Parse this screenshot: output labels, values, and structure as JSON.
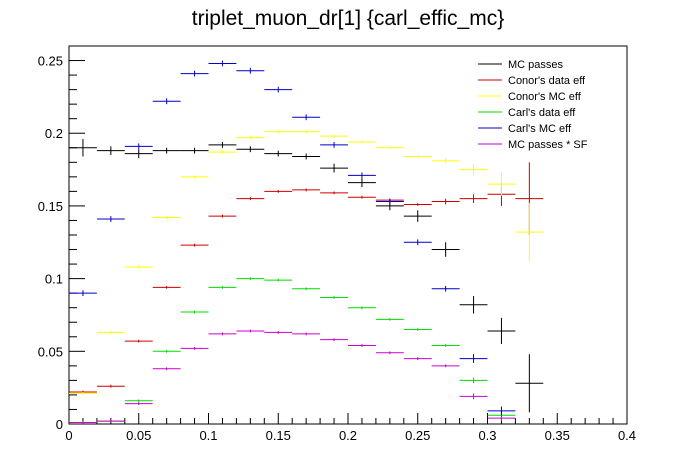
{
  "chart_data": {
    "type": "scatter",
    "title": "triplet_muon_dr[1]  {carl_effic_mc}",
    "xlabel": "",
    "ylabel": "",
    "xlim": [
      0,
      0.4
    ],
    "ylim": [
      0,
      0.26
    ],
    "x_ticks": [
      "0",
      "0.05",
      "0.1",
      "0.15",
      "0.2",
      "0.25",
      "0.3",
      "0.35",
      "0.4"
    ],
    "y_ticks": [
      "0",
      "0.05",
      "0.1",
      "0.15",
      "0.2",
      "0.25"
    ],
    "bin_width": 0.02,
    "legend_position": "top-right",
    "series": [
      {
        "name": "MC passes",
        "color": "#000000",
        "x": [
          0.01,
          0.03,
          0.05,
          0.07,
          0.09,
          0.11,
          0.13,
          0.15,
          0.17,
          0.19,
          0.21,
          0.23,
          0.25,
          0.27,
          0.29,
          0.31,
          0.33
        ],
        "y": [
          0.19,
          0.188,
          0.186,
          0.188,
          0.188,
          0.192,
          0.189,
          0.186,
          0.184,
          0.176,
          0.166,
          0.15,
          0.143,
          0.12,
          0.082,
          0.064,
          0.028
        ],
        "err": [
          0.006,
          0.003,
          0.003,
          0.002,
          0.002,
          0.002,
          0.002,
          0.002,
          0.002,
          0.003,
          0.003,
          0.003,
          0.004,
          0.005,
          0.006,
          0.009,
          0.02
        ]
      },
      {
        "name": "Conor's data eff",
        "color": "#cc0000",
        "x": [
          0.01,
          0.03,
          0.05,
          0.07,
          0.09,
          0.11,
          0.13,
          0.15,
          0.17,
          0.19,
          0.21,
          0.23,
          0.25,
          0.27,
          0.29,
          0.31,
          0.33
        ],
        "y": [
          0.022,
          0.026,
          0.057,
          0.094,
          0.123,
          0.143,
          0.155,
          0.16,
          0.161,
          0.159,
          0.156,
          0.154,
          0.151,
          0.153,
          0.155,
          0.158,
          0.155
        ],
        "err": [
          0.001,
          0.001,
          0.001,
          0.001,
          0.001,
          0.001,
          0.001,
          0.001,
          0.001,
          0.001,
          0.001,
          0.001,
          0.001,
          0.002,
          0.003,
          0.008,
          0.025
        ]
      },
      {
        "name": "Conor's MC eff",
        "color": "#ffff00",
        "x": [
          0.01,
          0.03,
          0.05,
          0.07,
          0.09,
          0.11,
          0.13,
          0.15,
          0.17,
          0.19,
          0.21,
          0.23,
          0.25,
          0.27,
          0.29,
          0.31,
          0.33
        ],
        "y": [
          0.021,
          0.063,
          0.108,
          0.142,
          0.17,
          0.187,
          0.197,
          0.201,
          0.201,
          0.198,
          0.194,
          0.19,
          0.184,
          0.181,
          0.175,
          0.165,
          0.132
        ],
        "err": [
          0.001,
          0.001,
          0.001,
          0.001,
          0.001,
          0.001,
          0.001,
          0.001,
          0.001,
          0.001,
          0.001,
          0.001,
          0.001,
          0.002,
          0.004,
          0.008,
          0.02
        ]
      },
      {
        "name": "Carl's data eff",
        "color": "#00dd00",
        "x": [
          0.01,
          0.03,
          0.05,
          0.07,
          0.09,
          0.11,
          0.13,
          0.15,
          0.17,
          0.19,
          0.21,
          0.23,
          0.25,
          0.27,
          0.29,
          0.31
        ],
        "y": [
          0.001,
          0.002,
          0.016,
          0.05,
          0.077,
          0.094,
          0.1,
          0.099,
          0.093,
          0.087,
          0.08,
          0.072,
          0.065,
          0.054,
          0.03,
          0.006
        ],
        "err": [
          0.001,
          0.001,
          0.001,
          0.001,
          0.001,
          0.001,
          0.001,
          0.001,
          0.001,
          0.001,
          0.001,
          0.001,
          0.001,
          0.001,
          0.002,
          0.003
        ]
      },
      {
        "name": "Carl's MC eff",
        "color": "#0000cc",
        "x": [
          0.01,
          0.03,
          0.05,
          0.07,
          0.09,
          0.11,
          0.13,
          0.15,
          0.17,
          0.19,
          0.21,
          0.23,
          0.25,
          0.27,
          0.29,
          0.31
        ],
        "y": [
          0.09,
          0.141,
          0.191,
          0.222,
          0.241,
          0.248,
          0.243,
          0.23,
          0.211,
          0.192,
          0.171,
          0.153,
          0.125,
          0.093,
          0.045,
          0.009
        ],
        "err": [
          0.002,
          0.002,
          0.002,
          0.002,
          0.002,
          0.002,
          0.002,
          0.002,
          0.002,
          0.002,
          0.002,
          0.002,
          0.002,
          0.002,
          0.003,
          0.003
        ]
      },
      {
        "name": "MC passes * SF",
        "color": "#cc00cc",
        "x": [
          0.01,
          0.03,
          0.05,
          0.07,
          0.09,
          0.11,
          0.13,
          0.15,
          0.17,
          0.19,
          0.21,
          0.23,
          0.25,
          0.27,
          0.29,
          0.31
        ],
        "y": [
          0.001,
          0.002,
          0.014,
          0.038,
          0.052,
          0.062,
          0.064,
          0.063,
          0.062,
          0.058,
          0.054,
          0.049,
          0.045,
          0.04,
          0.019,
          0.004
        ],
        "err": [
          0.001,
          0.001,
          0.001,
          0.001,
          0.001,
          0.001,
          0.001,
          0.001,
          0.001,
          0.001,
          0.001,
          0.001,
          0.001,
          0.001,
          0.002,
          0.002
        ]
      }
    ]
  }
}
